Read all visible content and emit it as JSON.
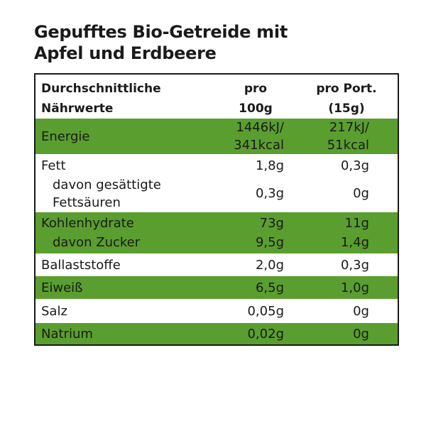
{
  "title": {
    "line1": "Gepufftes Bio-Getreide mit",
    "line2": "Apfel und Erdbeere"
  },
  "colors": {
    "highlight_row": "#5a9e2f",
    "border": "#1a1a1a",
    "text": "#1a1a1a"
  },
  "table": {
    "header": {
      "name_line1": "Durchschnittliche",
      "name_line2": "Nährwerte",
      "col1_line1": "pro",
      "col1_line2": "100g",
      "col2_line1": "pro Port.",
      "col2_line2": "(15g)"
    },
    "rows": {
      "energie": {
        "name": "Energie",
        "v1_line1": "1446kJ/",
        "v1_line2": "341kcal",
        "v2_line1": "217kJ/",
        "v2_line2": "51kcal"
      },
      "fett": {
        "name": "Fett",
        "v1": "1,8g",
        "v2": "0,3g"
      },
      "gesaettigte": {
        "name_line1": "davon gesättigte",
        "name_line2": "Fettsäuren",
        "v1": "0,3g",
        "v2": "0g"
      },
      "kohlenhydrate": {
        "name": "Kohlenhydrate",
        "v1": "73g",
        "v2": "11g"
      },
      "zucker": {
        "name": "davon Zucker",
        "v1": "9,5g",
        "v2": "1,4g"
      },
      "ballaststoffe": {
        "name": "Ballaststoffe",
        "v1": "2,0g",
        "v2": "0,3g"
      },
      "eiweiss": {
        "name": "Eiweiß",
        "v1": "6,5g",
        "v2": "1,0g"
      },
      "salz": {
        "name": "Salz",
        "v1": "0,05g",
        "v2": "0g"
      },
      "natrium": {
        "name": "Natrium",
        "v1": "0,02g",
        "v2": "0g"
      }
    }
  }
}
